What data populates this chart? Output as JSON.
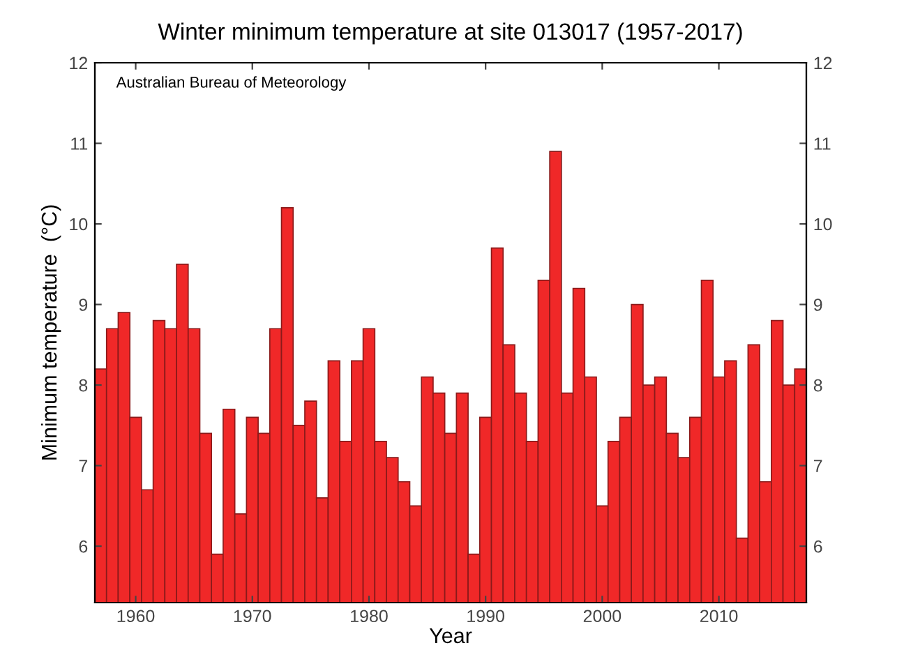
{
  "chart_data": {
    "type": "bar",
    "title": "Winter minimum temperature at site 013017 (1957-2017)",
    "xlabel": "Year",
    "ylabel": "Minimum temperature  (°C)",
    "annotations": [
      "Australian Bureau of Meteorology"
    ],
    "x": [
      1957,
      1958,
      1959,
      1960,
      1961,
      1962,
      1963,
      1964,
      1965,
      1966,
      1967,
      1968,
      1969,
      1970,
      1971,
      1972,
      1973,
      1974,
      1975,
      1976,
      1977,
      1978,
      1979,
      1980,
      1981,
      1982,
      1983,
      1984,
      1985,
      1986,
      1987,
      1988,
      1989,
      1990,
      1991,
      1992,
      1993,
      1994,
      1995,
      1996,
      1997,
      1998,
      1999,
      2000,
      2001,
      2002,
      2003,
      2004,
      2005,
      2006,
      2007,
      2008,
      2009,
      2010,
      2011,
      2012,
      2013,
      2014,
      2015,
      2016,
      2017
    ],
    "values": [
      8.2,
      8.7,
      8.9,
      7.6,
      6.7,
      8.8,
      8.7,
      9.5,
      8.7,
      7.4,
      5.9,
      7.7,
      6.4,
      7.6,
      7.4,
      8.7,
      10.2,
      7.5,
      7.8,
      6.6,
      8.3,
      7.3,
      8.3,
      8.7,
      7.3,
      7.1,
      6.8,
      6.5,
      8.1,
      7.9,
      7.4,
      7.9,
      5.9,
      7.6,
      9.7,
      8.5,
      7.9,
      7.3,
      9.3,
      10.9,
      7.9,
      9.2,
      8.1,
      6.5,
      7.3,
      7.6,
      9.0,
      8.0,
      8.1,
      7.4,
      7.1,
      7.6,
      9.3,
      8.1,
      8.3,
      6.1,
      8.5,
      6.8,
      8.8,
      8.0,
      8.2
    ],
    "color": "#f02828",
    "xlim": [
      1956.5,
      2017.5
    ],
    "xticks": [
      1960,
      1970,
      1980,
      1990,
      2000,
      2010
    ],
    "ylim": [
      5.3,
      12
    ],
    "yticks": [
      6,
      7,
      8,
      9,
      10,
      11,
      12
    ],
    "y2lim": [
      5.3,
      12
    ],
    "y2ticks": [
      6,
      7,
      8,
      9,
      10,
      11,
      12
    ],
    "grid": false,
    "legend": false
  }
}
